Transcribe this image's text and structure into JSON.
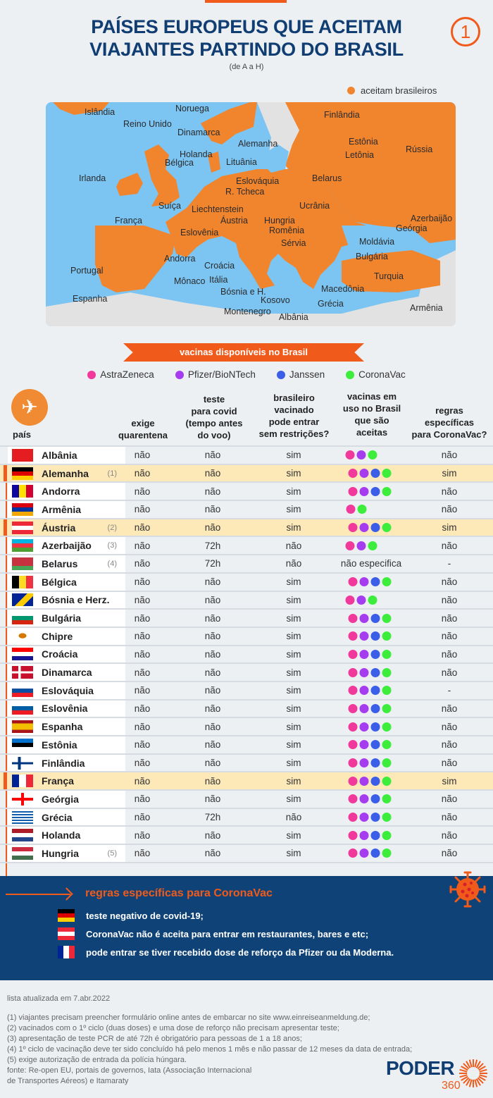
{
  "header": {
    "title_line1": "PAÍSES EUROPEUS QUE ACEITAM",
    "title_line2": "VIAJANTES PARTINDO DO BRASIL",
    "subtitle": "(de A a H)",
    "page_badge": "1"
  },
  "map": {
    "legend_label": "aceitam brasileiros",
    "legend_color": "#f0852e",
    "sea_color": "#7cc4f2",
    "other_land_color": "#e2e2e2",
    "labels": [
      "Islândia",
      "Noruega",
      "Reino Unido",
      "Dinamarca",
      "Finlândia",
      "Estônia",
      "Letônia",
      "Rússia",
      "Alemanha",
      "Holanda",
      "Bélgica",
      "Lituânia",
      "Irlanda",
      "Belarus",
      "Eslováquia",
      "R. Tcheca",
      "Suíça",
      "Liechtenstein",
      "Ucrânia",
      "França",
      "Áustria",
      "Hungria",
      "Azerbaijão",
      "Eslovênia",
      "Romênia",
      "Geórgia",
      "Sérvia",
      "Moldávia",
      "Andorra",
      "Bulgária",
      "Croácia",
      "Portugal",
      "Itália",
      "Mônaco",
      "Turquia",
      "Bósnia e H.",
      "Macedônia",
      "Espanha",
      "Kosovo",
      "Grécia",
      "Montenegro",
      "Armênia",
      "Albânia"
    ]
  },
  "vaccines": {
    "ribbon": "vacinas disponíveis no Brasil",
    "legend": [
      {
        "key": "A",
        "label": "AstraZeneca",
        "color": "#f0399a"
      },
      {
        "key": "P",
        "label": "Pfizer/BioNTech",
        "color": "#a63cf0"
      },
      {
        "key": "J",
        "label": "Janssen",
        "color": "#3a5ee8"
      },
      {
        "key": "C",
        "label": "CoronaVac",
        "color": "#3ced3c"
      }
    ]
  },
  "table": {
    "headers": {
      "country": "país",
      "quarantine": [
        "exige",
        "quarentena"
      ],
      "test": [
        "teste",
        "para covid",
        "(tempo antes",
        "do voo)"
      ],
      "vaccinated": [
        "brasileiro",
        "vacinado",
        "pode entrar",
        "sem restrições?"
      ],
      "accepted": [
        "vacinas em",
        "uso no Brasil",
        "que são",
        "aceitas"
      ],
      "coronavac": [
        "regras",
        "específicas",
        "para CoronaVac?"
      ]
    },
    "rows": [
      {
        "country": "Albânia",
        "flag": "albania",
        "note": "",
        "quarantine": "não",
        "test": "não",
        "free": "sim",
        "vaccines": [
          "A",
          "P",
          "C"
        ],
        "coronavac": "não",
        "highlight": false
      },
      {
        "country": "Alemanha",
        "flag": "germany",
        "note": "(1)",
        "quarantine": "não",
        "test": "não",
        "free": "sim",
        "vaccines": [
          "A",
          "P",
          "J",
          "C"
        ],
        "coronavac": "sim",
        "highlight": true
      },
      {
        "country": "Andorra",
        "flag": "andorra",
        "note": "",
        "quarantine": "não",
        "test": "não",
        "free": "sim",
        "vaccines": [
          "A",
          "P",
          "J",
          "C"
        ],
        "coronavac": "não",
        "highlight": false
      },
      {
        "country": "Armênia",
        "flag": "armenia",
        "note": "",
        "quarantine": "não",
        "test": "não",
        "free": "sim",
        "vaccines": [
          "A",
          "C"
        ],
        "coronavac": "não",
        "highlight": false
      },
      {
        "country": "Áustria",
        "flag": "austria",
        "note": "(2)",
        "quarantine": "não",
        "test": "não",
        "free": "sim",
        "vaccines": [
          "A",
          "P",
          "J",
          "C"
        ],
        "coronavac": "sim",
        "highlight": true
      },
      {
        "country": "Azerbaijão",
        "flag": "azerbaijan",
        "note": "(3)",
        "quarantine": "não",
        "test": "72h",
        "free": "não",
        "vaccines": [
          "A",
          "P",
          "C"
        ],
        "coronavac": "não",
        "highlight": false
      },
      {
        "country": "Belarus",
        "flag": "belarus",
        "note": "(4)",
        "quarantine": "não",
        "test": "72h",
        "free": "não",
        "vaccines_text": "não especifica",
        "vaccines": [],
        "coronavac": "-",
        "highlight": false
      },
      {
        "country": "Bélgica",
        "flag": "belgium",
        "note": "",
        "quarantine": "não",
        "test": "não",
        "free": "sim",
        "vaccines": [
          "A",
          "P",
          "J",
          "C"
        ],
        "coronavac": "não",
        "highlight": false
      },
      {
        "country": "Bósnia e Herz.",
        "flag": "bosnia",
        "note": "",
        "quarantine": "não",
        "test": "não",
        "free": "sim",
        "vaccines": [
          "A",
          "P",
          "C"
        ],
        "coronavac": "não",
        "highlight": false
      },
      {
        "country": "Bulgária",
        "flag": "bulgaria",
        "note": "",
        "quarantine": "não",
        "test": "não",
        "free": "sim",
        "vaccines": [
          "A",
          "P",
          "J",
          "C"
        ],
        "coronavac": "não",
        "highlight": false
      },
      {
        "country": "Chipre",
        "flag": "cyprus",
        "note": "",
        "quarantine": "não",
        "test": "não",
        "free": "sim",
        "vaccines": [
          "A",
          "P",
          "J",
          "C"
        ],
        "coronavac": "não",
        "highlight": false
      },
      {
        "country": "Croácia",
        "flag": "croatia",
        "note": "",
        "quarantine": "não",
        "test": "não",
        "free": "sim",
        "vaccines": [
          "A",
          "P",
          "J",
          "C"
        ],
        "coronavac": "não",
        "highlight": false
      },
      {
        "country": "Dinamarca",
        "flag": "denmark",
        "note": "",
        "quarantine": "não",
        "test": "não",
        "free": "sim",
        "vaccines": [
          "A",
          "P",
          "J",
          "C"
        ],
        "coronavac": "não",
        "highlight": false
      },
      {
        "country": "Eslováquia",
        "flag": "slovakia",
        "note": "",
        "quarantine": "não",
        "test": "não",
        "free": "sim",
        "vaccines": [
          "A",
          "P",
          "J",
          "C"
        ],
        "coronavac": "-",
        "highlight": false
      },
      {
        "country": "Eslovênia",
        "flag": "slovenia",
        "note": "",
        "quarantine": "não",
        "test": "não",
        "free": "sim",
        "vaccines": [
          "A",
          "P",
          "J",
          "C"
        ],
        "coronavac": "não",
        "highlight": false
      },
      {
        "country": "Espanha",
        "flag": "spain",
        "note": "",
        "quarantine": "não",
        "test": "não",
        "free": "sim",
        "vaccines": [
          "A",
          "P",
          "J",
          "C"
        ],
        "coronavac": "não",
        "highlight": false
      },
      {
        "country": "Estônia",
        "flag": "estonia",
        "note": "",
        "quarantine": "não",
        "test": "não",
        "free": "sim",
        "vaccines": [
          "A",
          "P",
          "J",
          "C"
        ],
        "coronavac": "não",
        "highlight": false
      },
      {
        "country": "Finlândia",
        "flag": "finland",
        "note": "",
        "quarantine": "não",
        "test": "não",
        "free": "sim",
        "vaccines": [
          "A",
          "P",
          "J",
          "C"
        ],
        "coronavac": "não",
        "highlight": false
      },
      {
        "country": "França",
        "flag": "france",
        "note": "",
        "quarantine": "não",
        "test": "não",
        "free": "sim",
        "vaccines": [
          "A",
          "P",
          "J",
          "C"
        ],
        "coronavac": "sim",
        "highlight": true
      },
      {
        "country": "Geórgia",
        "flag": "georgia",
        "note": "",
        "quarantine": "não",
        "test": "não",
        "free": "sim",
        "vaccines": [
          "A",
          "P",
          "J",
          "C"
        ],
        "coronavac": "não",
        "highlight": false
      },
      {
        "country": "Grécia",
        "flag": "greece",
        "note": "",
        "quarantine": "não",
        "test": "72h",
        "free": "não",
        "vaccines": [
          "A",
          "P",
          "J",
          "C"
        ],
        "coronavac": "não",
        "highlight": false
      },
      {
        "country": "Holanda",
        "flag": "netherlands",
        "note": "",
        "quarantine": "não",
        "test": "não",
        "free": "sim",
        "vaccines": [
          "A",
          "P",
          "J",
          "C"
        ],
        "coronavac": "não",
        "highlight": false
      },
      {
        "country": "Hungria",
        "flag": "hungary",
        "note": "(5)",
        "quarantine": "não",
        "test": "não",
        "free": "sim",
        "vaccines": [
          "A",
          "P",
          "J",
          "C"
        ],
        "coronavac": "não",
        "highlight": false
      }
    ]
  },
  "coronavac_rules": {
    "title": "regras específicas para CoronaVac",
    "items": [
      {
        "flag": "germany",
        "text": "teste negativo de covid-19;"
      },
      {
        "flag": "austria",
        "text": "CoronaVac não é aceita para entrar em restaurantes, bares e etc;"
      },
      {
        "flag": "france",
        "text": "pode entrar se tiver recebido dose de reforço da Pfizer ou da Moderna."
      }
    ]
  },
  "footer": {
    "updated": "lista atualizada em 7.abr.2022",
    "notes": [
      "(1) viajantes precisam preencher formulário online antes de embarcar no site www.einreiseanmeldung.de;",
      "(2) vacinados com o 1º ciclo (duas doses) e uma dose de reforço não precisam apresentar teste;",
      "(3) apresentação de teste PCR de até 72h é obrigatório para pessoas de 1 a 18 anos;",
      "(4) 1º ciclo de vacinação deve ter sido concluído há pelo menos 1 mês e não passar de 12 meses da data de entrada;",
      "(5) exige autorização de entrada da polícia húngara."
    ],
    "source": "fonte: Re-open EU, portais de governos, Iata (Associação Internacional de Transportes Aéreos) e Itamaraty",
    "logo_word": "PODER",
    "logo_number": "360"
  },
  "colors": {
    "accent": "#f05a1a",
    "navy": "#103d72",
    "highlight_row": "#fde9b8",
    "rules_bg": "#0f4378"
  }
}
